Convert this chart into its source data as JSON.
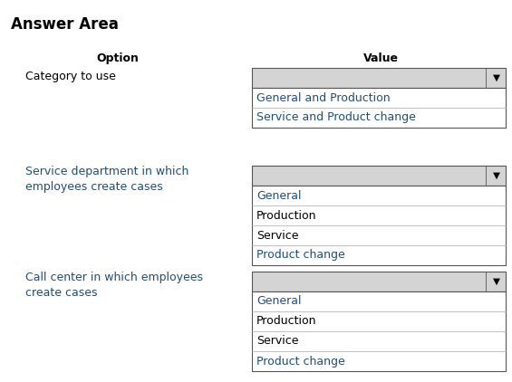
{
  "title": "Answer Area",
  "col_option": "Option",
  "col_value": "Value",
  "rows": [
    {
      "option_text": "Category to use",
      "option_color": "#000000",
      "dropdown_items": [
        "General and Production",
        "Service and Product change"
      ],
      "item_colors": [
        "#1f4e79",
        "#1f4e79"
      ]
    },
    {
      "option_text": "Service department in which\nemployees create cases",
      "option_color": "#1f4e79",
      "dropdown_items": [
        "General",
        "Production",
        "Service",
        "Product change"
      ],
      "item_colors": [
        "#1f4e79",
        "#000000",
        "#000000",
        "#1f4e79"
      ]
    },
    {
      "option_text": "Call center in which employees\ncreate cases",
      "option_color": "#1f4e79",
      "dropdown_items": [
        "General",
        "Production",
        "Service",
        "Product change"
      ],
      "item_colors": [
        "#1f4e79",
        "#000000",
        "#000000",
        "#1f4e79"
      ]
    }
  ],
  "bg_color": "#ffffff",
  "dropdown_bg": "#d4d4d4",
  "list_bg": "#ffffff",
  "border_color": "#555555",
  "title_fontsize": 12,
  "header_fontsize": 9,
  "option_fontsize": 9,
  "item_fontsize": 9
}
